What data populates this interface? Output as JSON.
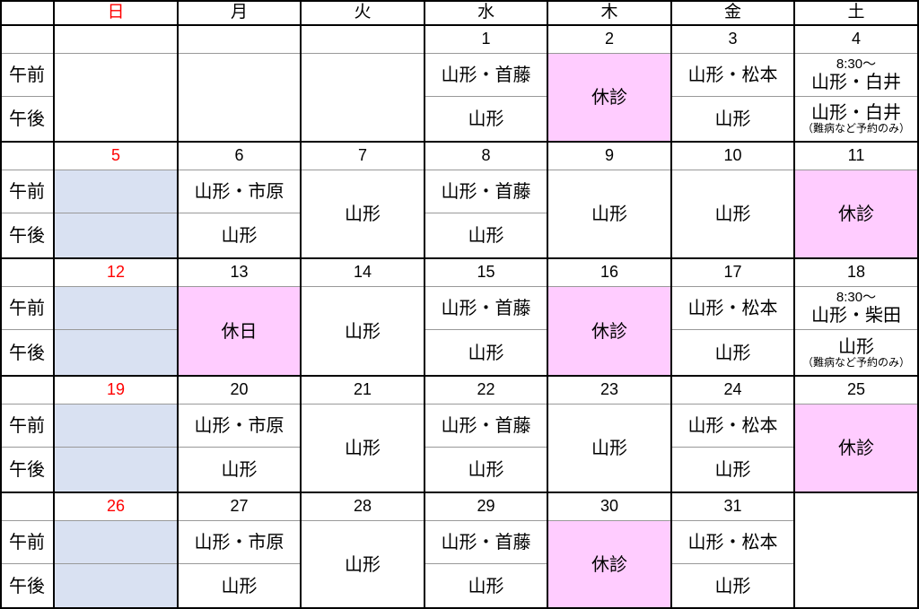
{
  "colors": {
    "sunday": "#ff0000",
    "closed": "#ffccff",
    "sunday_fill": "#d9e1f2"
  },
  "header": {
    "days": [
      "日",
      "月",
      "火",
      "水",
      "木",
      "金",
      "土"
    ]
  },
  "labels": {
    "am": "午前",
    "pm": "午後"
  },
  "weeks": [
    {
      "dates": [
        "",
        "",
        "",
        "1",
        "2",
        "3",
        "4"
      ],
      "days": [
        {
          "merged": ""
        },
        {
          "merged": ""
        },
        {
          "merged": ""
        },
        {
          "am": "山形・首藤",
          "pm": "山形"
        },
        {
          "merged": "休診",
          "fill": "closed"
        },
        {
          "am": "山形・松本",
          "pm": "山形"
        },
        {
          "am_note": "8:30～",
          "am": "山形・白井",
          "pm": "山形・白井",
          "pm_note": "（難病など予約のみ）"
        }
      ]
    },
    {
      "dates": [
        "5",
        "6",
        "7",
        "8",
        "9",
        "10",
        "11"
      ],
      "days": [
        {
          "am": "",
          "pm": "",
          "fill": "sunday_fill"
        },
        {
          "am": "山形・市原",
          "pm": "山形"
        },
        {
          "merged": "山形"
        },
        {
          "am": "山形・首藤",
          "pm": "山形"
        },
        {
          "merged": "山形"
        },
        {
          "merged": "山形"
        },
        {
          "merged": "休診",
          "fill": "closed"
        }
      ]
    },
    {
      "dates": [
        "12",
        "13",
        "14",
        "15",
        "16",
        "17",
        "18"
      ],
      "days": [
        {
          "am": "",
          "pm": "",
          "fill": "sunday_fill"
        },
        {
          "merged": "休日",
          "fill": "closed"
        },
        {
          "merged": "山形"
        },
        {
          "am": "山形・首藤",
          "pm": "山形"
        },
        {
          "merged": "休診",
          "fill": "closed"
        },
        {
          "am": "山形・松本",
          "pm": "山形"
        },
        {
          "am_note": "8:30～",
          "am": "山形・柴田",
          "pm": "山形",
          "pm_note": "（難病など予約のみ）"
        }
      ]
    },
    {
      "dates": [
        "19",
        "20",
        "21",
        "22",
        "23",
        "24",
        "25"
      ],
      "days": [
        {
          "am": "",
          "pm": "",
          "fill": "sunday_fill"
        },
        {
          "am": "山形・市原",
          "pm": "山形"
        },
        {
          "merged": "山形"
        },
        {
          "am": "山形・首藤",
          "pm": "山形"
        },
        {
          "merged": "山形"
        },
        {
          "am": "山形・松本",
          "pm": "山形"
        },
        {
          "merged": "休診",
          "fill": "closed"
        }
      ]
    },
    {
      "dates": [
        "26",
        "27",
        "28",
        "29",
        "30",
        "31",
        ""
      ],
      "days": [
        {
          "am": "",
          "pm": "",
          "fill": "sunday_fill"
        },
        {
          "am": "山形・市原",
          "pm": "山形"
        },
        {
          "merged": "山形"
        },
        {
          "am": "山形・首藤",
          "pm": "山形"
        },
        {
          "merged": "休診",
          "fill": "closed"
        },
        {
          "am": "山形・松本",
          "pm": "山形"
        },
        {
          "merged": "",
          "full": true
        }
      ]
    }
  ]
}
